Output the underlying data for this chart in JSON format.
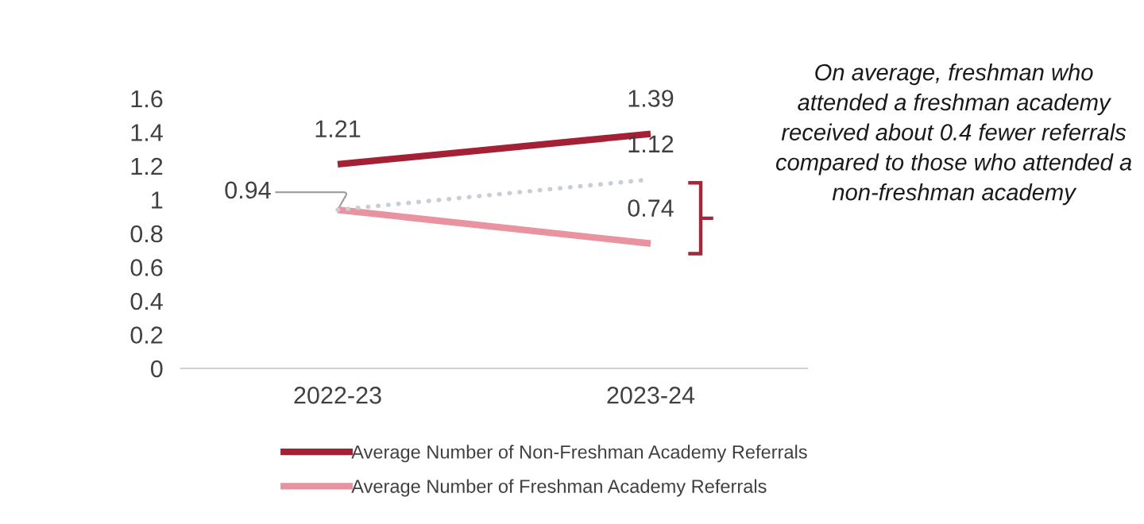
{
  "chart_data": {
    "type": "line",
    "categories": [
      "2022-23",
      "2023-24"
    ],
    "series": [
      {
        "name": "Average Number of Non-Freshman Academy Referrals",
        "color": "#a32035",
        "values": [
          1.21,
          1.39
        ],
        "value_labels": [
          "1.21",
          "1.39"
        ]
      },
      {
        "name": "Average Number of Freshman Academy Referrals",
        "color": "#e8939f",
        "values": [
          0.94,
          0.74
        ],
        "value_labels": [
          "0.94",
          "0.74"
        ]
      },
      {
        "color": "#c9ced6",
        "values": [
          0.94,
          1.12
        ],
        "line_style": "dotted",
        "value_labels": [
          null,
          "1.12"
        ]
      }
    ],
    "ylim": [
      0,
      1.6
    ],
    "yticks": [
      0,
      0.2,
      0.4,
      0.6,
      0.8,
      1,
      1.2,
      1.4,
      1.6
    ],
    "grid": false,
    "legend": "bottom",
    "line_style": "solid",
    "marker": "none",
    "annotations": [
      "On average, freshman who attended a freshman academy received about 0.4 fewer referrals compared to those who attended a non-freshman academy"
    ]
  }
}
